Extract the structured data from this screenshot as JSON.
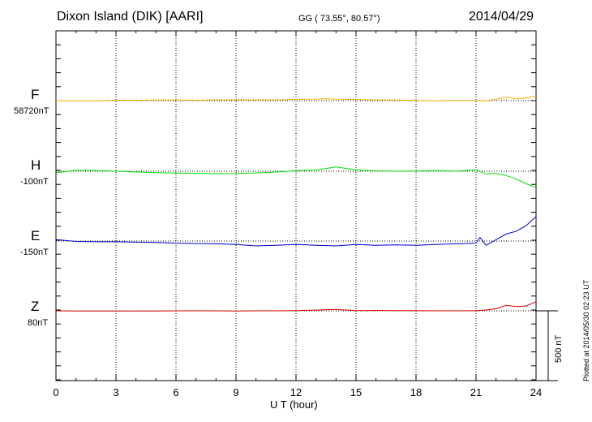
{
  "header": {
    "station": "Dixon Island (DIK)  [AARI]",
    "coords": "GG ( 73.55°,  80.57°)",
    "date": "2014/04/29"
  },
  "plotted_note": "Plotted at 2014/05/30 02:23 UT",
  "scale_label": "500 nT",
  "chart_data": {
    "type": "line",
    "title": "Dixon Island (DIK)  [AARI]",
    "xlabel": "U T (hour)",
    "ylabel": "",
    "xlim": [
      0,
      24
    ],
    "xticks": [
      0,
      3,
      6,
      9,
      12,
      15,
      18,
      21,
      24
    ],
    "xtick_labels": [
      "0",
      "3",
      "6",
      "9",
      "12",
      "15",
      "18",
      "21",
      "24"
    ],
    "grid": true,
    "colors": {
      "F": "#f0b000",
      "H": "#00dd00",
      "E": "#0000cc",
      "Z": "#dd0000"
    },
    "series": [
      {
        "name": "F",
        "baseline": "58720nT",
        "x": [
          0,
          1,
          2,
          3,
          4,
          5,
          6,
          7,
          8,
          9,
          10,
          11,
          12,
          13,
          13.5,
          14,
          15,
          16,
          17,
          18,
          19,
          20,
          21,
          21.5,
          22,
          22.5,
          23,
          23.5,
          24
        ],
        "y": [
          0,
          0,
          0,
          3,
          3,
          4,
          4,
          3,
          5,
          6,
          5,
          6,
          9,
          11,
          14,
          10,
          8,
          5,
          4,
          2,
          0,
          2,
          2,
          -2,
          10,
          26,
          12,
          19,
          33
        ]
      },
      {
        "name": "H",
        "baseline": "-100nT",
        "x": [
          0,
          0.5,
          1,
          2,
          3,
          4,
          5,
          6,
          7,
          8,
          9,
          10,
          11,
          12,
          13,
          13.5,
          14,
          15,
          16,
          17,
          18,
          19,
          20,
          20.5,
          21,
          21.5,
          22,
          22.5,
          23,
          23.5,
          24
        ],
        "y": [
          -10,
          -3,
          8,
          5,
          0,
          -5,
          -10,
          -13,
          -15,
          -17,
          -16,
          -12,
          -6,
          4,
          10,
          20,
          30,
          10,
          3,
          0,
          2,
          5,
          0,
          6,
          10,
          -20,
          -15,
          -30,
          -55,
          -90,
          -115
        ]
      },
      {
        "name": "E",
        "baseline": "-150nT",
        "x": [
          0,
          1,
          2,
          3,
          4,
          5,
          6,
          7,
          8,
          9,
          10,
          11,
          12,
          13,
          14,
          15,
          16,
          17,
          18,
          19,
          20,
          21,
          21.2,
          21.5,
          22,
          22.5,
          23,
          23.5,
          24
        ],
        "y": [
          10,
          -3,
          -5,
          -5,
          -8,
          -10,
          -15,
          -18,
          -20,
          -25,
          -35,
          -30,
          -25,
          -30,
          -35,
          -25,
          -30,
          -28,
          -30,
          -25,
          -20,
          -15,
          25,
          -30,
          10,
          50,
          70,
          110,
          175
        ]
      },
      {
        "name": "Z",
        "baseline": "80nT",
        "x": [
          0,
          1,
          2,
          3,
          4,
          5,
          6,
          7,
          8,
          9,
          10,
          11,
          12,
          13,
          14,
          15,
          16,
          17,
          18,
          19,
          20,
          21,
          21.5,
          22,
          22.5,
          23,
          23.5,
          24
        ],
        "y": [
          0,
          -2,
          -2,
          -2,
          -1,
          -1,
          0,
          0,
          0,
          -1,
          0,
          0,
          2,
          5,
          10,
          2,
          3,
          2,
          2,
          0,
          0,
          2,
          6,
          15,
          40,
          30,
          35,
          65
        ]
      }
    ]
  }
}
